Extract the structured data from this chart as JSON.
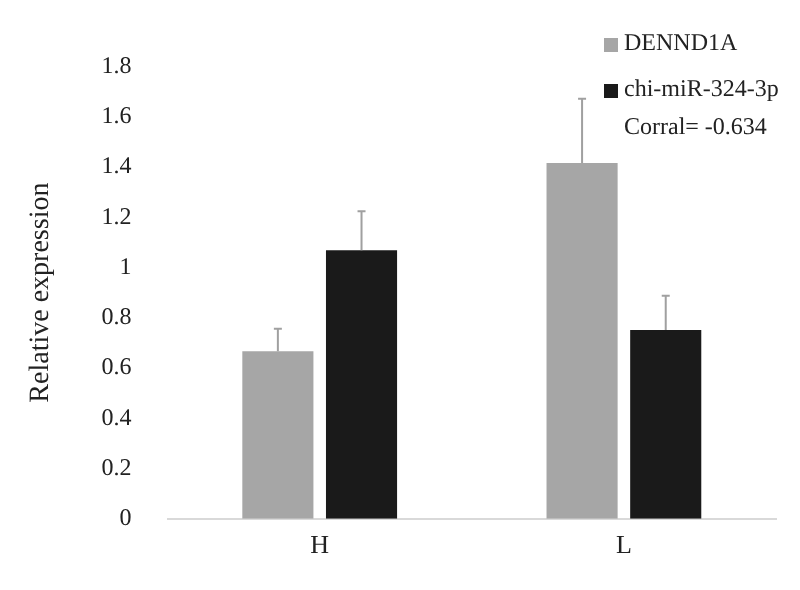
{
  "chart_data": {
    "type": "bar",
    "ylabel": "Relative expression",
    "categories": [
      "H",
      "L"
    ],
    "series": [
      {
        "name": "DENND1A",
        "color": "#a6a6a6",
        "values": [
          0.667,
          1.416
        ],
        "errors": [
          [
            0.667,
            0.756
          ],
          [
            1.416,
            1.671
          ]
        ]
      },
      {
        "name": "chi-miR-324-3p",
        "color": "#1a1a1a",
        "values": [
          1.069,
          0.751
        ],
        "errors": [
          [
            1.069,
            1.224
          ],
          [
            0.751,
            0.887
          ]
        ]
      }
    ],
    "ylim": [
      0,
      1.8
    ],
    "yticks": [
      0,
      0.2,
      0.4,
      0.6,
      0.8,
      1,
      1.2,
      1.4,
      1.6,
      1.8
    ],
    "grid": false,
    "legend": "top right",
    "annotations": [
      "Corral= -0.634"
    ]
  }
}
